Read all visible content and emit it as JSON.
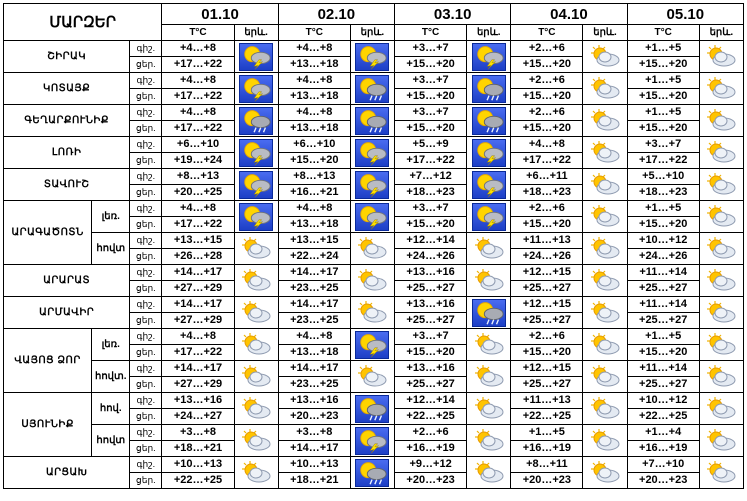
{
  "header": {
    "region_title": "ՄԱՐԶԵՐ",
    "dates": [
      "01.10",
      "02.10",
      "03.10",
      "04.10",
      "05.10"
    ],
    "temp_label": "T°C",
    "icon_label": "երև."
  },
  "period_labels": {
    "night": "գիշ.",
    "day": "ցեր."
  },
  "rows": [
    {
      "region": "ՇԻՐԱԿ",
      "sub": "",
      "n": [
        "+4…+8",
        "+4…+8",
        "+3…+7",
        "+2…+6",
        "+1…+5"
      ],
      "d": [
        "+17…+22",
        "+13…+18",
        "+15…+20",
        "+15…+20",
        "+15…+20"
      ],
      "icons": [
        "storm",
        "storm",
        "storm",
        "partly-cloudy",
        "partly-cloudy"
      ]
    },
    {
      "region": "ԿՈՏԱՅՔ",
      "sub": "",
      "n": [
        "+4…+8",
        "+4…+8",
        "+3…+7",
        "+2…+6",
        "+1…+5"
      ],
      "d": [
        "+17…+22",
        "+13…+18",
        "+15…+20",
        "+15…+20",
        "+15…+20"
      ],
      "icons": [
        "storm",
        "rain",
        "rain",
        "partly-cloudy",
        "partly-cloudy"
      ]
    },
    {
      "region": "ԳԵՂԱՐՔՈՒՆԻՔ",
      "sub": "",
      "n": [
        "+4…+8",
        "+4…+8",
        "+3…+7",
        "+2…+6",
        "+1…+5"
      ],
      "d": [
        "+17…+22",
        "+13…+18",
        "+15…+20",
        "+15…+20",
        "+15…+20"
      ],
      "icons": [
        "rain",
        "rain",
        "rain",
        "partly-cloudy",
        "partly-cloudy"
      ]
    },
    {
      "region": "ԼՈՌԻ",
      "sub": "",
      "n": [
        "+6…+10",
        "+6…+10",
        "+5…+9",
        "+4…+8",
        "+3…+7"
      ],
      "d": [
        "+19…+24",
        "+15…+20",
        "+17…+22",
        "+17…+22",
        "+17…+22"
      ],
      "icons": [
        "storm",
        "storm",
        "storm",
        "partly-cloudy",
        "partly-cloudy"
      ]
    },
    {
      "region": "ՏԱՎՈՒՇ",
      "sub": "",
      "n": [
        "+8…+13",
        "+8…+13",
        "+7…+12",
        "+6…+11",
        "+5…+10"
      ],
      "d": [
        "+20…+25",
        "+16…+21",
        "+18…+23",
        "+18…+23",
        "+18…+23"
      ],
      "icons": [
        "storm",
        "storm",
        "storm",
        "partly-cloudy",
        "partly-cloudy"
      ]
    },
    {
      "region": "ԱՐԱԳԱԾՈՏՆ",
      "sub": "լեռ.",
      "n": [
        "+4…+8",
        "+4…+8",
        "+3…+7",
        "+2…+6",
        "+1…+5"
      ],
      "d": [
        "+17…+22",
        "+13…+18",
        "+15…+20",
        "+15…+20",
        "+15…+20"
      ],
      "icons": [
        "storm",
        "storm",
        "storm",
        "partly-cloudy",
        "partly-cloudy"
      ]
    },
    {
      "region": "",
      "sub": "հովտ",
      "n": [
        "+13…+15",
        "+13…+15",
        "+12…+14",
        "+11…+13",
        "+10…+12"
      ],
      "d": [
        "+26…+28",
        "+22…+24",
        "+24…+26",
        "+24…+26",
        "+24…+26"
      ],
      "icons": [
        "partly-cloudy",
        "partly-cloudy",
        "partly-cloudy",
        "partly-cloudy",
        "partly-cloudy"
      ]
    },
    {
      "region": "ԱՐԱՐԱՏ",
      "sub": "",
      "n": [
        "+14…+17",
        "+14…+17",
        "+13…+16",
        "+12…+15",
        "+11…+14"
      ],
      "d": [
        "+27…+29",
        "+23…+25",
        "+25…+27",
        "+25…+27",
        "+25…+27"
      ],
      "icons": [
        "partly-cloudy",
        "partly-cloudy",
        "partly-cloudy",
        "partly-cloudy",
        "partly-cloudy"
      ]
    },
    {
      "region": "ԱՐՄԱՎԻՐ",
      "sub": "",
      "n": [
        "+14…+17",
        "+14…+17",
        "+13…+16",
        "+12…+15",
        "+11…+14"
      ],
      "d": [
        "+27…+29",
        "+23…+25",
        "+25…+27",
        "+25…+27",
        "+25…+27"
      ],
      "icons": [
        "partly-cloudy",
        "partly-cloudy",
        "rain",
        "partly-cloudy",
        "partly-cloudy"
      ]
    },
    {
      "region": "ՎԱՅՈՑ ՁՈՐ",
      "sub": "լեռ.",
      "n": [
        "+4…+8",
        "+4…+8",
        "+3…+7",
        "+2…+6",
        "+1…+5"
      ],
      "d": [
        "+17…+22",
        "+13…+18",
        "+15…+20",
        "+15…+20",
        "+15…+20"
      ],
      "icons": [
        "partly-cloudy",
        "storm",
        "partly-cloudy",
        "partly-cloudy",
        "partly-cloudy"
      ]
    },
    {
      "region": "",
      "sub": "հովտ.",
      "n": [
        "+14…+17",
        "+14…+17",
        "+13…+16",
        "+12…+15",
        "+11…+14"
      ],
      "d": [
        "+27…+29",
        "+23…+25",
        "+25…+27",
        "+25…+27",
        "+25…+27"
      ],
      "icons": [
        "partly-cloudy",
        "partly-cloudy",
        "partly-cloudy",
        "partly-cloudy",
        "partly-cloudy"
      ]
    },
    {
      "region": "ՍՅՈՒՆԻՔ",
      "sub": "հով.",
      "n": [
        "+13…+16",
        "+13…+16",
        "+12…+14",
        "+11…+13",
        "+10…+12"
      ],
      "d": [
        "+24…+27",
        "+20…+23",
        "+22…+25",
        "+22…+25",
        "+22…+25"
      ],
      "icons": [
        "partly-cloudy",
        "rain",
        "partly-cloudy",
        "partly-cloudy",
        "partly-cloudy"
      ]
    },
    {
      "region": "",
      "sub": "հովտ",
      "n": [
        "+3…+8",
        "+3…+8",
        "+2…+6",
        "+1…+5",
        "+1…+4"
      ],
      "d": [
        "+18…+21",
        "+14…+17",
        "+16…+19",
        "+16…+19",
        "+16…+19"
      ],
      "icons": [
        "partly-cloudy",
        "storm",
        "partly-cloudy",
        "partly-cloudy",
        "partly-cloudy"
      ]
    },
    {
      "region": "ԱՐՑԱԽ",
      "sub": "",
      "n": [
        "+10…+13",
        "+10…+13",
        "+9…+12",
        "+8…+11",
        "+7…+10"
      ],
      "d": [
        "+22…+25",
        "+18…+21",
        "+20…+23",
        "+20…+23",
        "+20…+23"
      ],
      "icons": [
        "partly-cloudy",
        "rain",
        "partly-cloudy",
        "partly-cloudy",
        "partly-cloudy"
      ]
    }
  ]
}
